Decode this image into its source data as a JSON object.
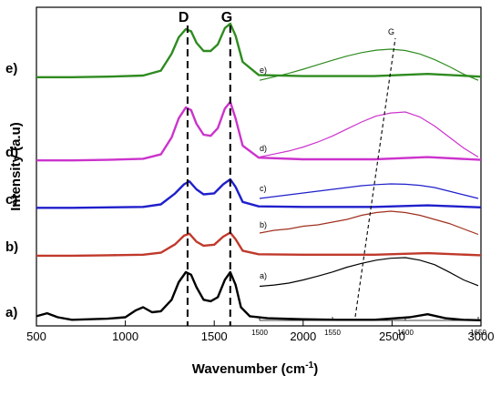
{
  "chart_data": {
    "type": "line",
    "xlabel": "Wavenumber (cm",
    "xlabel_sup": "-1",
    "xlabel_close": ")",
    "ylabel": "Intensity (a.u)",
    "xlim": [
      500,
      3000
    ],
    "xticks": [
      500,
      1000,
      1500,
      2000,
      2500,
      3000
    ],
    "tick_labels": [
      "500",
      "1000",
      "1500",
      "2000",
      "2500",
      "3000"
    ],
    "peaks": [
      {
        "label": "D",
        "x": 1350
      },
      {
        "label": "G",
        "x": 1590
      }
    ],
    "series": [
      {
        "label": "a)",
        "color": "#000000",
        "points": [
          [
            500,
            0.12
          ],
          [
            560,
            0.18
          ],
          [
            620,
            0.1
          ],
          [
            700,
            0.05
          ],
          [
            800,
            0.06
          ],
          [
            900,
            0.07
          ],
          [
            1000,
            0.1
          ],
          [
            1060,
            0.24
          ],
          [
            1100,
            0.3
          ],
          [
            1150,
            0.2
          ],
          [
            1200,
            0.22
          ],
          [
            1260,
            0.45
          ],
          [
            1300,
            0.8
          ],
          [
            1340,
            1.0
          ],
          [
            1370,
            0.95
          ],
          [
            1400,
            0.7
          ],
          [
            1440,
            0.45
          ],
          [
            1480,
            0.42
          ],
          [
            1520,
            0.5
          ],
          [
            1560,
            0.85
          ],
          [
            1590,
            1.0
          ],
          [
            1620,
            0.75
          ],
          [
            1650,
            0.3
          ],
          [
            1700,
            0.12
          ],
          [
            1800,
            0.08
          ],
          [
            2000,
            0.06
          ],
          [
            2200,
            0.05
          ],
          [
            2400,
            0.05
          ],
          [
            2600,
            0.1
          ],
          [
            2700,
            0.16
          ],
          [
            2800,
            0.08
          ],
          [
            2900,
            0.05
          ],
          [
            3000,
            0.04
          ]
        ]
      },
      {
        "label": "b)",
        "color": "#c0392b",
        "points": [
          [
            500,
            0.02
          ],
          [
            700,
            0.02
          ],
          [
            900,
            0.03
          ],
          [
            1100,
            0.04
          ],
          [
            1200,
            0.08
          ],
          [
            1280,
            0.25
          ],
          [
            1330,
            0.42
          ],
          [
            1360,
            0.46
          ],
          [
            1400,
            0.3
          ],
          [
            1440,
            0.22
          ],
          [
            1500,
            0.24
          ],
          [
            1550,
            0.4
          ],
          [
            1590,
            0.48
          ],
          [
            1620,
            0.35
          ],
          [
            1660,
            0.12
          ],
          [
            1750,
            0.05
          ],
          [
            2000,
            0.04
          ],
          [
            2400,
            0.04
          ],
          [
            2700,
            0.07
          ],
          [
            3000,
            0.03
          ]
        ]
      },
      {
        "label": "c)",
        "color": "#1f1fcc",
        "points": [
          [
            500,
            0.03
          ],
          [
            700,
            0.03
          ],
          [
            900,
            0.04
          ],
          [
            1100,
            0.05
          ],
          [
            1200,
            0.1
          ],
          [
            1280,
            0.32
          ],
          [
            1330,
            0.5
          ],
          [
            1360,
            0.56
          ],
          [
            1400,
            0.4
          ],
          [
            1440,
            0.3
          ],
          [
            1500,
            0.32
          ],
          [
            1550,
            0.5
          ],
          [
            1590,
            0.6
          ],
          [
            1620,
            0.45
          ],
          [
            1660,
            0.15
          ],
          [
            1750,
            0.06
          ],
          [
            2000,
            0.05
          ],
          [
            2400,
            0.05
          ],
          [
            2700,
            0.08
          ],
          [
            3000,
            0.04
          ]
        ]
      },
      {
        "label": "d)",
        "color": "#cc33cc",
        "points": [
          [
            500,
            0.03
          ],
          [
            700,
            0.03
          ],
          [
            900,
            0.04
          ],
          [
            1100,
            0.06
          ],
          [
            1200,
            0.14
          ],
          [
            1260,
            0.45
          ],
          [
            1300,
            0.8
          ],
          [
            1340,
            1.0
          ],
          [
            1370,
            0.95
          ],
          [
            1400,
            0.7
          ],
          [
            1440,
            0.5
          ],
          [
            1480,
            0.48
          ],
          [
            1520,
            0.62
          ],
          [
            1560,
            0.98
          ],
          [
            1590,
            1.1
          ],
          [
            1620,
            0.8
          ],
          [
            1660,
            0.3
          ],
          [
            1750,
            0.08
          ],
          [
            2000,
            0.05
          ],
          [
            2400,
            0.05
          ],
          [
            2700,
            0.09
          ],
          [
            3000,
            0.04
          ]
        ]
      },
      {
        "label": "e)",
        "color": "#2e8b1f",
        "points": [
          [
            500,
            0.02
          ],
          [
            700,
            0.02
          ],
          [
            900,
            0.03
          ],
          [
            1100,
            0.05
          ],
          [
            1200,
            0.14
          ],
          [
            1260,
            0.45
          ],
          [
            1300,
            0.75
          ],
          [
            1340,
            0.9
          ],
          [
            1370,
            0.86
          ],
          [
            1400,
            0.65
          ],
          [
            1440,
            0.5
          ],
          [
            1480,
            0.5
          ],
          [
            1520,
            0.62
          ],
          [
            1560,
            0.92
          ],
          [
            1590,
            1.0
          ],
          [
            1620,
            0.78
          ],
          [
            1660,
            0.3
          ],
          [
            1750,
            0.06
          ],
          [
            2000,
            0.04
          ],
          [
            2400,
            0.04
          ],
          [
            2700,
            0.08
          ],
          [
            3000,
            0.03
          ]
        ]
      }
    ],
    "inset": {
      "xlim": [
        1500,
        1650
      ],
      "xticks": [
        1500,
        1550,
        1600,
        1650
      ],
      "tick_labels": [
        "1500",
        "1550",
        "1600",
        "1650"
      ],
      "guide_label": "G",
      "series": [
        {
          "label": "a)",
          "color": "#000000",
          "points": [
            [
              1500,
              0.1
            ],
            [
              1510,
              0.14
            ],
            [
              1520,
              0.2
            ],
            [
              1530,
              0.3
            ],
            [
              1540,
              0.42
            ],
            [
              1550,
              0.55
            ],
            [
              1560,
              0.7
            ],
            [
              1570,
              0.82
            ],
            [
              1580,
              0.92
            ],
            [
              1590,
              0.98
            ],
            [
              1600,
              1.0
            ],
            [
              1610,
              0.92
            ],
            [
              1620,
              0.78
            ],
            [
              1630,
              0.55
            ],
            [
              1640,
              0.3
            ],
            [
              1650,
              0.12
            ]
          ]
        },
        {
          "label": "b)",
          "color": "#a0301f",
          "points": [
            [
              1500,
              0.2
            ],
            [
              1510,
              0.3
            ],
            [
              1520,
              0.35
            ],
            [
              1530,
              0.45
            ],
            [
              1540,
              0.5
            ],
            [
              1550,
              0.6
            ],
            [
              1560,
              0.7
            ],
            [
              1570,
              0.85
            ],
            [
              1580,
              0.95
            ],
            [
              1590,
              1.0
            ],
            [
              1600,
              0.95
            ],
            [
              1610,
              0.85
            ],
            [
              1620,
              0.7
            ],
            [
              1630,
              0.55
            ],
            [
              1640,
              0.35
            ],
            [
              1650,
              0.15
            ]
          ]
        },
        {
          "label": "c)",
          "color": "#1f1fcc",
          "points": [
            [
              1500,
              0.2
            ],
            [
              1510,
              0.3
            ],
            [
              1520,
              0.4
            ],
            [
              1530,
              0.5
            ],
            [
              1540,
              0.6
            ],
            [
              1550,
              0.7
            ],
            [
              1560,
              0.8
            ],
            [
              1570,
              0.9
            ],
            [
              1580,
              0.96
            ],
            [
              1590,
              1.0
            ],
            [
              1600,
              0.98
            ],
            [
              1610,
              0.92
            ],
            [
              1620,
              0.8
            ],
            [
              1630,
              0.6
            ],
            [
              1640,
              0.4
            ],
            [
              1650,
              0.2
            ]
          ]
        },
        {
          "label": "d)",
          "color": "#cc33cc",
          "points": [
            [
              1500,
              0.1
            ],
            [
              1510,
              0.16
            ],
            [
              1520,
              0.22
            ],
            [
              1530,
              0.3
            ],
            [
              1540,
              0.4
            ],
            [
              1550,
              0.52
            ],
            [
              1560,
              0.66
            ],
            [
              1570,
              0.8
            ],
            [
              1580,
              0.92
            ],
            [
              1590,
              0.98
            ],
            [
              1600,
              1.0
            ],
            [
              1610,
              0.9
            ],
            [
              1620,
              0.72
            ],
            [
              1630,
              0.5
            ],
            [
              1640,
              0.28
            ],
            [
              1650,
              0.1
            ]
          ]
        },
        {
          "label": "e)",
          "color": "#2e8b1f",
          "points": [
            [
              1500,
              0.1
            ],
            [
              1510,
              0.2
            ],
            [
              1520,
              0.3
            ],
            [
              1530,
              0.42
            ],
            [
              1540,
              0.55
            ],
            [
              1550,
              0.68
            ],
            [
              1560,
              0.8
            ],
            [
              1570,
              0.9
            ],
            [
              1580,
              0.97
            ],
            [
              1590,
              1.0
            ],
            [
              1600,
              0.96
            ],
            [
              1610,
              0.86
            ],
            [
              1620,
              0.7
            ],
            [
              1630,
              0.5
            ],
            [
              1640,
              0.28
            ],
            [
              1650,
              0.1
            ]
          ]
        }
      ]
    }
  }
}
